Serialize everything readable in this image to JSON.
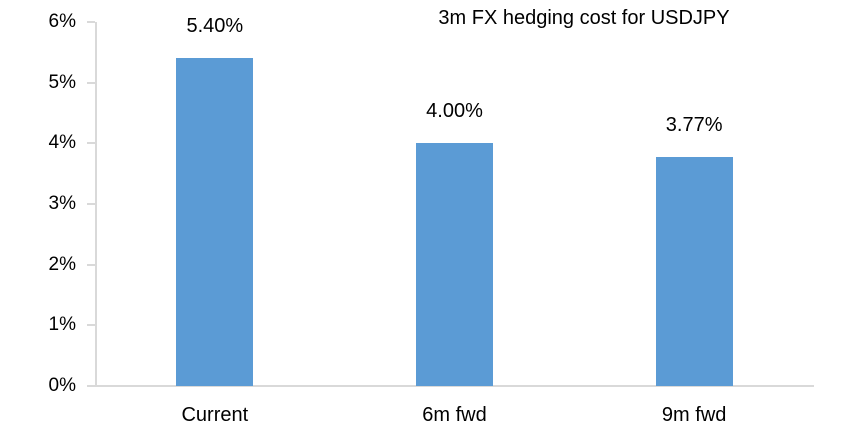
{
  "chart_data": {
    "type": "bar",
    "title": "3m FX hedging cost for USDJPY",
    "categories": [
      "Current",
      "6m fwd",
      "9m fwd"
    ],
    "values": [
      5.4,
      4.0,
      3.77
    ],
    "data_labels": [
      "5.40%",
      "4.00%",
      "3.77%"
    ],
    "xlabel": "",
    "ylabel": "",
    "ylim": [
      0,
      6
    ],
    "ytick_step": 1,
    "ytick_labels": [
      "0%",
      "1%",
      "2%",
      "3%",
      "4%",
      "5%",
      "6%"
    ],
    "grid": false,
    "legend": "none",
    "bar_color": "#5B9BD5",
    "axis_color": "#D9D9D9",
    "text_color": "#000000"
  }
}
